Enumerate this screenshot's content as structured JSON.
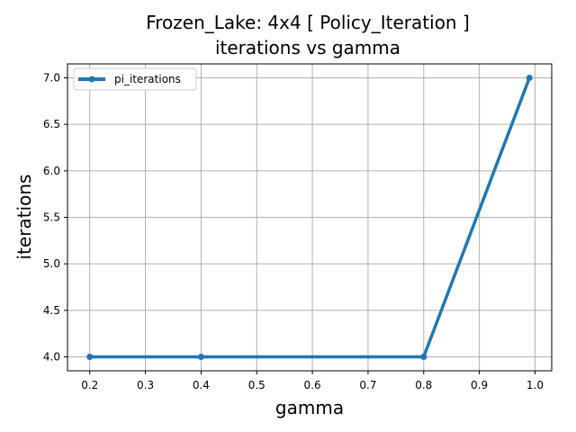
{
  "chart_data": {
    "type": "line",
    "title": "Frozen_Lake: 4x4 [ Policy_Iteration ]",
    "subtitle": "iterations vs gamma",
    "xlabel": "gamma",
    "ylabel": "iterations",
    "xlim": [
      0.16,
      1.03
    ],
    "ylim": [
      3.85,
      7.15
    ],
    "xticks": [
      0.2,
      0.3,
      0.4,
      0.5,
      0.6,
      0.7,
      0.8,
      0.9,
      1.0
    ],
    "xtick_labels": [
      "0.2",
      "0.3",
      "0.4",
      "0.5",
      "0.6",
      "0.7",
      "0.8",
      "0.9",
      "1.0"
    ],
    "yticks": [
      4.0,
      4.5,
      5.0,
      5.5,
      6.0,
      6.5,
      7.0
    ],
    "ytick_labels": [
      "4.0",
      "4.5",
      "5.0",
      "5.5",
      "6.0",
      "6.5",
      "7.0"
    ],
    "grid": true,
    "legend_position": "top-left",
    "series": [
      {
        "name": "pi_iterations",
        "color": "#1f77b4",
        "x": [
          0.2,
          0.4,
          0.8,
          0.99
        ],
        "y": [
          4,
          4,
          4,
          7
        ]
      }
    ]
  }
}
